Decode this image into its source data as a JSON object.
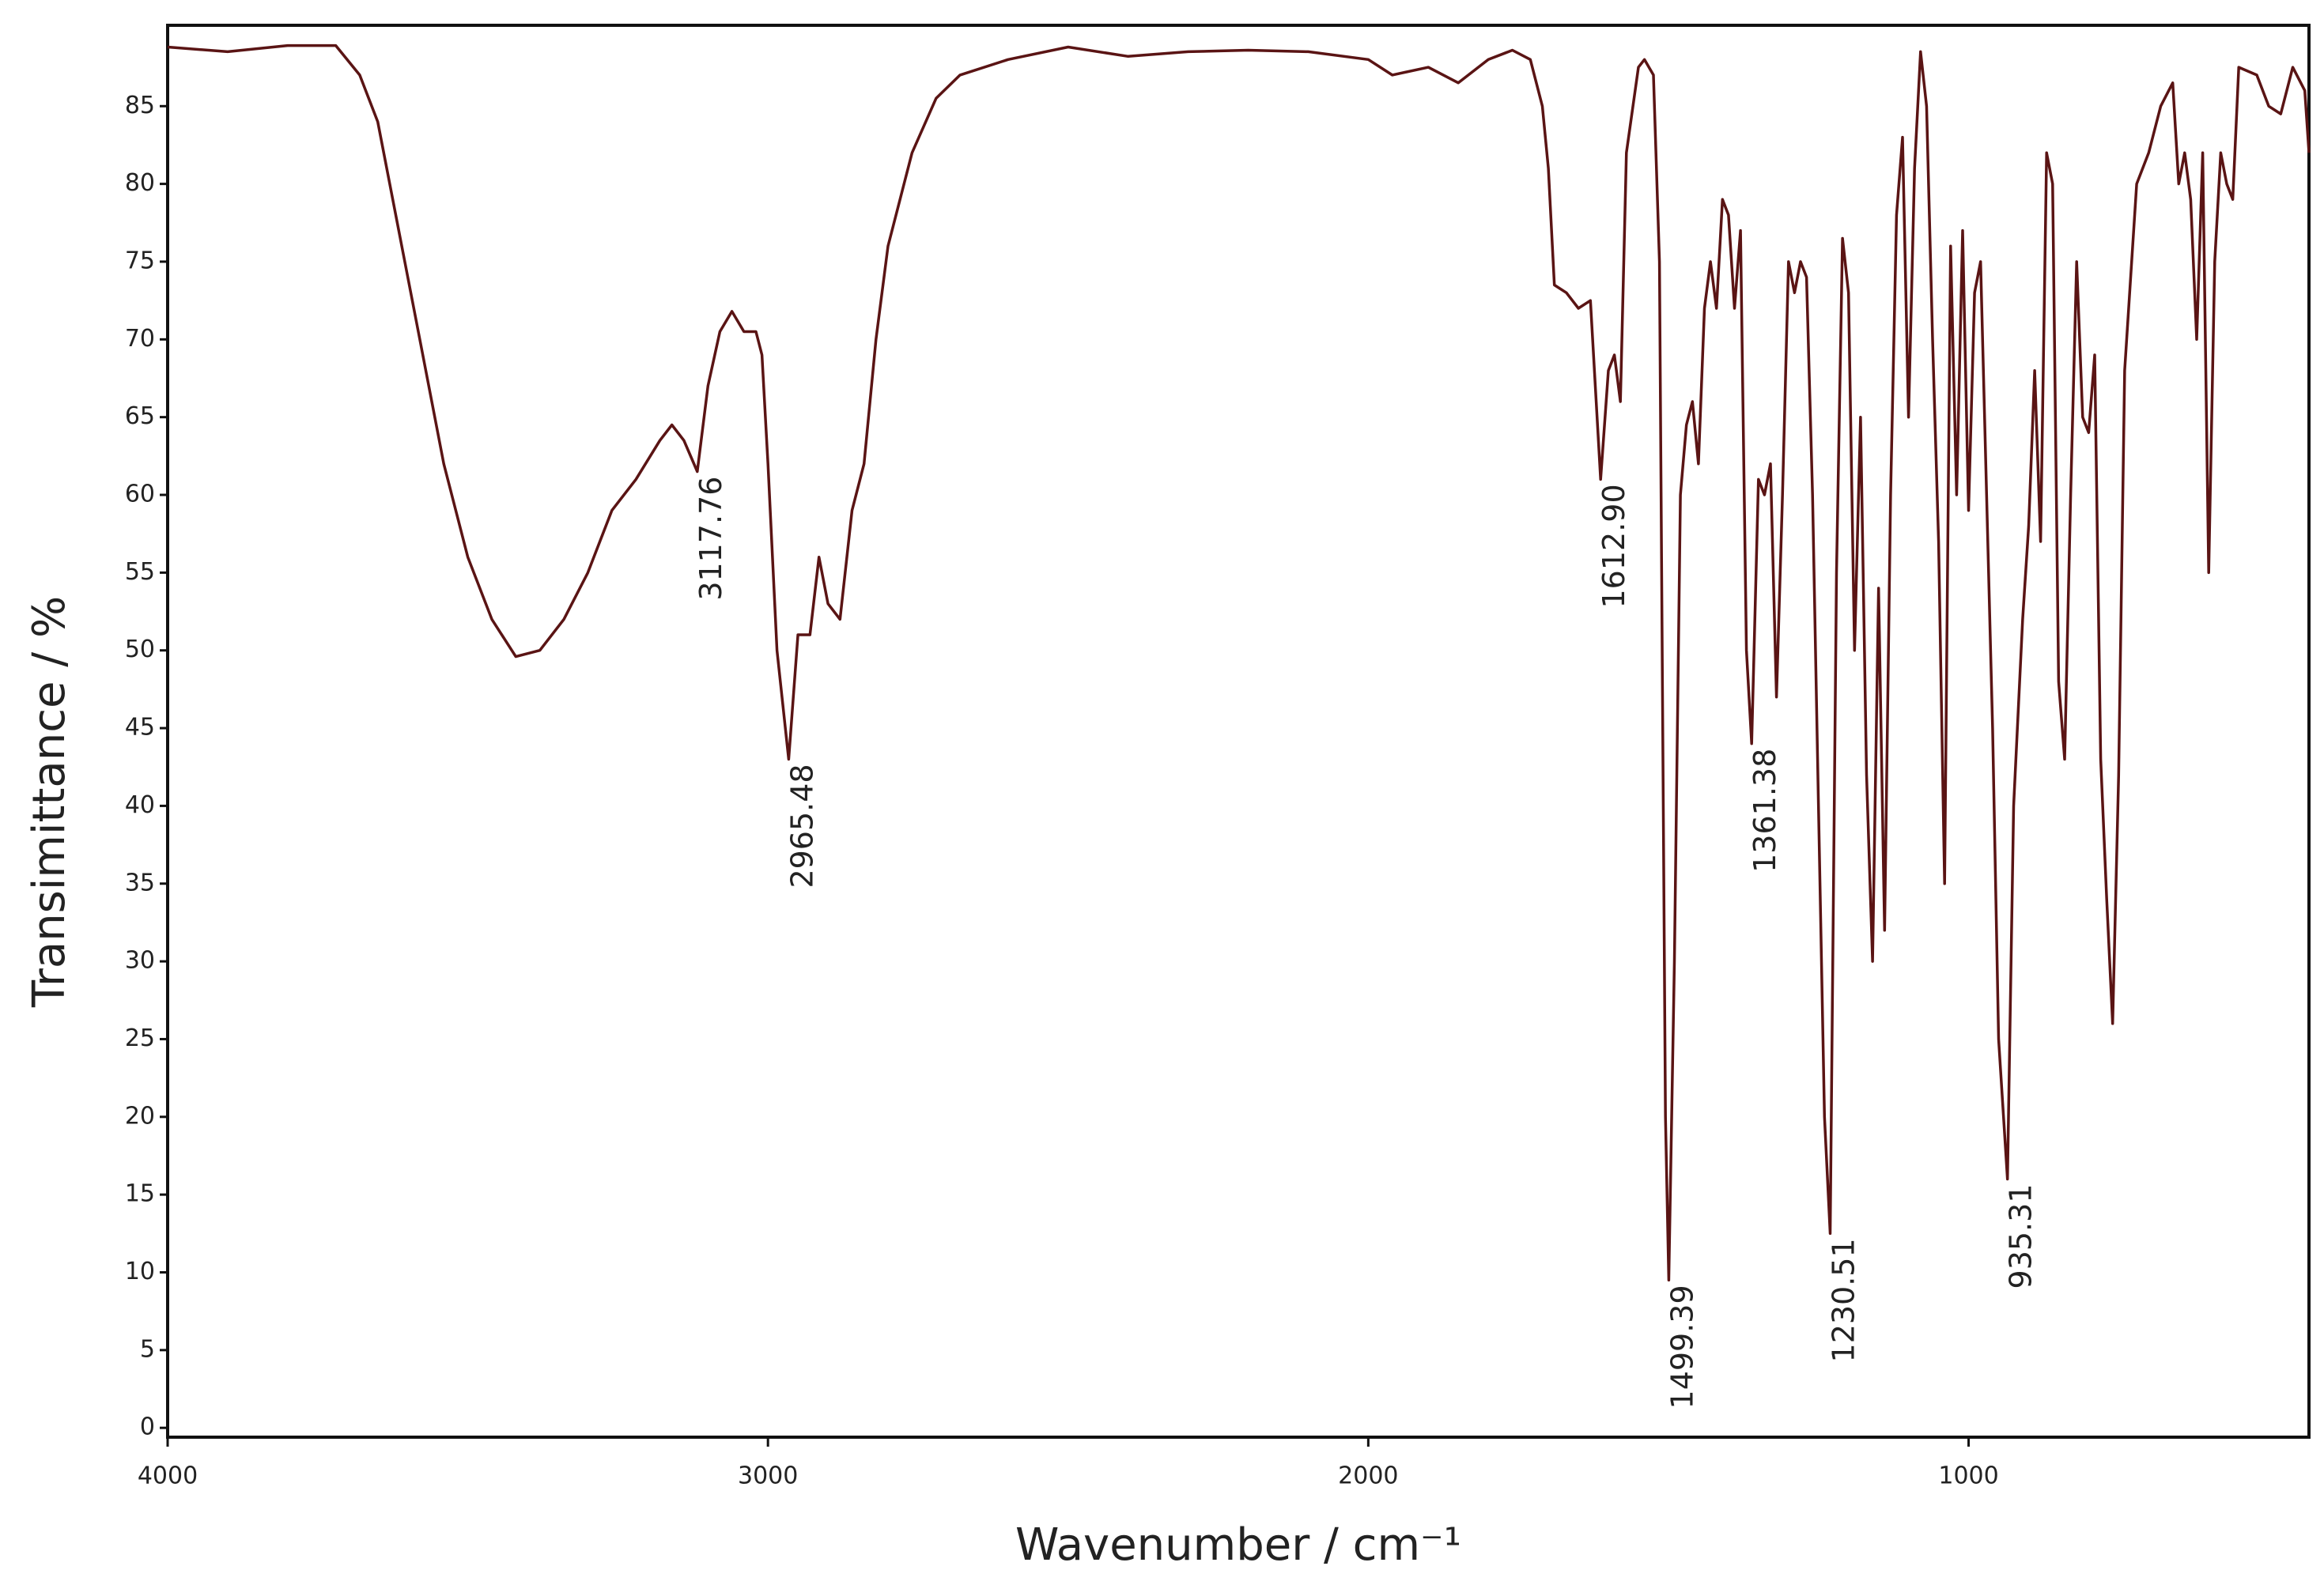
{
  "chart_data": {
    "type": "line",
    "x_label": "Wavenumber / cm⁻¹",
    "y_label": "Transimittance / %",
    "color": "#5a1414",
    "x": [
      4000,
      3900,
      3800,
      3720,
      3680,
      3650,
      3620,
      3580,
      3540,
      3500,
      3460,
      3420,
      3380,
      3340,
      3300,
      3260,
      3220,
      3180,
      3160,
      3140,
      3117.76,
      3100,
      3080,
      3060,
      3040,
      3020,
      3010,
      3000,
      2985,
      2965.48,
      2950,
      2930,
      2915,
      2900,
      2880,
      2860,
      2840,
      2820,
      2800,
      2760,
      2720,
      2680,
      2600,
      2500,
      2400,
      2300,
      2200,
      2100,
      2000,
      1960,
      1900,
      1850,
      1800,
      1760,
      1730,
      1710,
      1700,
      1690,
      1670,
      1650,
      1630,
      1612.9,
      1600,
      1590,
      1580,
      1570,
      1550,
      1540,
      1525,
      1515,
      1505,
      1499.39,
      1490,
      1480,
      1470,
      1460,
      1450,
      1440,
      1430,
      1420,
      1410,
      1400,
      1390,
      1380,
      1370,
      1361.38,
      1350,
      1340,
      1330,
      1320,
      1310,
      1300,
      1290,
      1280,
      1270,
      1260,
      1250,
      1240,
      1230.51,
      1220,
      1210,
      1200,
      1190,
      1180,
      1170,
      1160,
      1150,
      1140,
      1130,
      1120,
      1110,
      1100,
      1090,
      1080,
      1070,
      1060,
      1050,
      1040,
      1030,
      1020,
      1010,
      1000,
      990,
      980,
      970,
      960,
      950,
      935.31,
      925,
      910,
      900,
      890,
      880,
      870,
      860,
      850,
      840,
      830,
      820,
      810,
      800,
      790,
      780,
      770,
      760,
      750,
      740,
      720,
      700,
      680,
      660,
      650,
      640,
      630,
      620,
      610,
      600,
      590,
      580,
      570,
      560,
      550,
      520,
      500,
      480,
      460,
      440,
      433
    ],
    "values": [
      88.8,
      88.5,
      88.9,
      88.9,
      87,
      84,
      78,
      70,
      62,
      56,
      52,
      49.6,
      50,
      52,
      55,
      59,
      61,
      63.5,
      64.5,
      63.5,
      61.5,
      67,
      70.5,
      71.8,
      70.5,
      70.5,
      69,
      62,
      50,
      43,
      51,
      51,
      56,
      53,
      52,
      59,
      62,
      70,
      76,
      82,
      85.5,
      87,
      88,
      88.8,
      88.2,
      88.5,
      88.6,
      88.5,
      88,
      87,
      87.5,
      86.5,
      88,
      88.6,
      88,
      85,
      81,
      73.5,
      73,
      72,
      72.5,
      61,
      68,
      69,
      66,
      82,
      87.5,
      88,
      87,
      75,
      20,
      9.5,
      30,
      60,
      64.5,
      66,
      62,
      72,
      75,
      72,
      79,
      78,
      72,
      77,
      50,
      44,
      61,
      60,
      62,
      47,
      60,
      75,
      73,
      75,
      74,
      60,
      40,
      20,
      12.5,
      55,
      76.5,
      73,
      50,
      65,
      42,
      30,
      54,
      32,
      60,
      78,
      83,
      65,
      81,
      88.5,
      85,
      70,
      57,
      35,
      76,
      60,
      77,
      59,
      73,
      75,
      60,
      45,
      25,
      16,
      40,
      52,
      58,
      68,
      57,
      82,
      80,
      48,
      43,
      60,
      75,
      65,
      64,
      69,
      43,
      34,
      26,
      42,
      68,
      80,
      82,
      85,
      86.5,
      80,
      82,
      79,
      70,
      82,
      55,
      75,
      82,
      80,
      79,
      87.5,
      87,
      85,
      84.5,
      87.5,
      86,
      82
    ],
    "xlim": [
      4000,
      433
    ],
    "ylim": [
      -0.6,
      90.2
    ],
    "xticks": [
      4000,
      3000,
      2000,
      1000
    ],
    "yticks": [
      0,
      5,
      10,
      15,
      20,
      25,
      30,
      35,
      40,
      45,
      50,
      55,
      60,
      65,
      70,
      75,
      80,
      85
    ],
    "annotations": [
      {
        "label": "3117.76",
        "x": 3117.76,
        "y": 61.5
      },
      {
        "label": "2965.48",
        "x": 2965.48,
        "y": 43
      },
      {
        "label": "1612.90",
        "x": 1612.9,
        "y": 61
      },
      {
        "label": "1499.39",
        "x": 1499.39,
        "y": 9.5
      },
      {
        "label": "1361.38",
        "x": 1361.38,
        "y": 44
      },
      {
        "label": "1230.51",
        "x": 1230.51,
        "y": 12.5
      },
      {
        "label": "935.31",
        "x": 935.31,
        "y": 16
      }
    ]
  }
}
